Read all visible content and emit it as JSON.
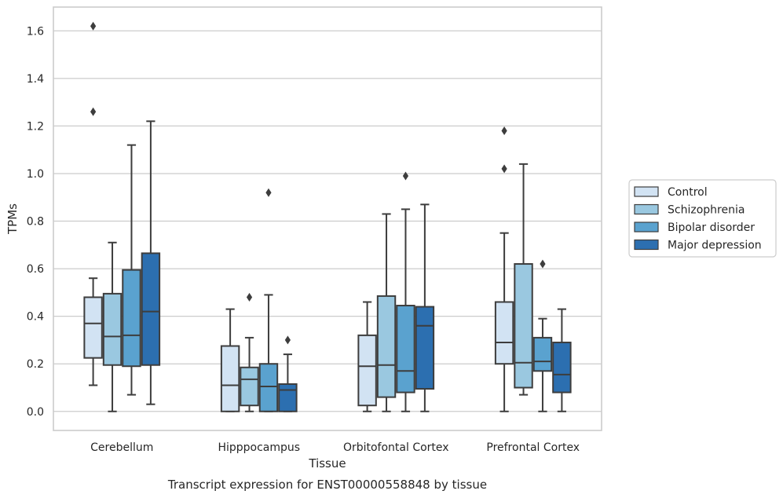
{
  "chart_data": {
    "type": "boxplot",
    "title": "",
    "xlabel": "Tissue",
    "ylabel": "TPMs",
    "caption": "Transcript expression for ENST00000558848 by tissue",
    "ylim": [
      -0.08,
      1.7
    ],
    "yticks": [
      0.0,
      0.2,
      0.4,
      0.6,
      0.8,
      1.0,
      1.2,
      1.4,
      1.6
    ],
    "ytick_labels": [
      "0.0",
      "0.2",
      "0.4",
      "0.6",
      "0.8",
      "1.0",
      "1.2",
      "1.4",
      "1.6"
    ],
    "grid": "horizontal",
    "legend_position": "right",
    "categories": [
      "Cerebellum",
      "Hipppocampus",
      "Orbitofontal Cortex",
      "Prefrontal Cortex"
    ],
    "series": [
      {
        "name": "Control",
        "color": "#d2e3f3",
        "boxes": [
          {
            "whislo": 0.11,
            "q1": 0.225,
            "med": 0.37,
            "q3": 0.48,
            "whishi": 0.56,
            "fliers": [
              1.62,
              1.26
            ]
          },
          {
            "whislo": 0.0,
            "q1": 0.0,
            "med": 0.11,
            "q3": 0.275,
            "whishi": 0.43,
            "fliers": []
          },
          {
            "whislo": 0.0,
            "q1": 0.025,
            "med": 0.19,
            "q3": 0.32,
            "whishi": 0.46,
            "fliers": []
          },
          {
            "whislo": 0.0,
            "q1": 0.2,
            "med": 0.29,
            "q3": 0.46,
            "whishi": 0.75,
            "fliers": [
              1.18,
              1.02
            ]
          }
        ]
      },
      {
        "name": "Schizophrenia",
        "color": "#9ac8e0",
        "boxes": [
          {
            "whislo": 0.0,
            "q1": 0.195,
            "med": 0.315,
            "q3": 0.495,
            "whishi": 0.71,
            "fliers": []
          },
          {
            "whislo": 0.0,
            "q1": 0.025,
            "med": 0.135,
            "q3": 0.185,
            "whishi": 0.31,
            "fliers": [
              0.48
            ]
          },
          {
            "whislo": 0.0,
            "q1": 0.06,
            "med": 0.195,
            "q3": 0.485,
            "whishi": 0.83,
            "fliers": []
          },
          {
            "whislo": 0.07,
            "q1": 0.1,
            "med": 0.205,
            "q3": 0.62,
            "whishi": 1.04,
            "fliers": []
          }
        ]
      },
      {
        "name": "Bipolar disorder",
        "color": "#5aa2cf",
        "boxes": [
          {
            "whislo": 0.07,
            "q1": 0.19,
            "med": 0.32,
            "q3": 0.595,
            "whishi": 1.12,
            "fliers": []
          },
          {
            "whislo": 0.0,
            "q1": 0.0,
            "med": 0.105,
            "q3": 0.2,
            "whishi": 0.49,
            "fliers": [
              0.92
            ]
          },
          {
            "whislo": 0.0,
            "q1": 0.08,
            "med": 0.17,
            "q3": 0.445,
            "whishi": 0.85,
            "fliers": [
              0.99
            ]
          },
          {
            "whislo": 0.0,
            "q1": 0.17,
            "med": 0.21,
            "q3": 0.31,
            "whishi": 0.39,
            "fliers": [
              0.62
            ]
          }
        ]
      },
      {
        "name": "Major depression",
        "color": "#2c6fb0",
        "boxes": [
          {
            "whislo": 0.03,
            "q1": 0.195,
            "med": 0.42,
            "q3": 0.665,
            "whishi": 1.22,
            "fliers": []
          },
          {
            "whislo": 0.0,
            "q1": 0.0,
            "med": 0.09,
            "q3": 0.115,
            "whishi": 0.24,
            "fliers": [
              0.3
            ]
          },
          {
            "whislo": 0.0,
            "q1": 0.095,
            "med": 0.36,
            "q3": 0.44,
            "whishi": 0.87,
            "fliers": []
          },
          {
            "whislo": 0.0,
            "q1": 0.08,
            "med": 0.155,
            "q3": 0.29,
            "whishi": 0.43,
            "fliers": []
          }
        ]
      }
    ],
    "colors": {
      "edge": "#3d3d3d",
      "grid": "#cccccc",
      "frame": "#cccccc",
      "background": "#ffffff"
    }
  }
}
